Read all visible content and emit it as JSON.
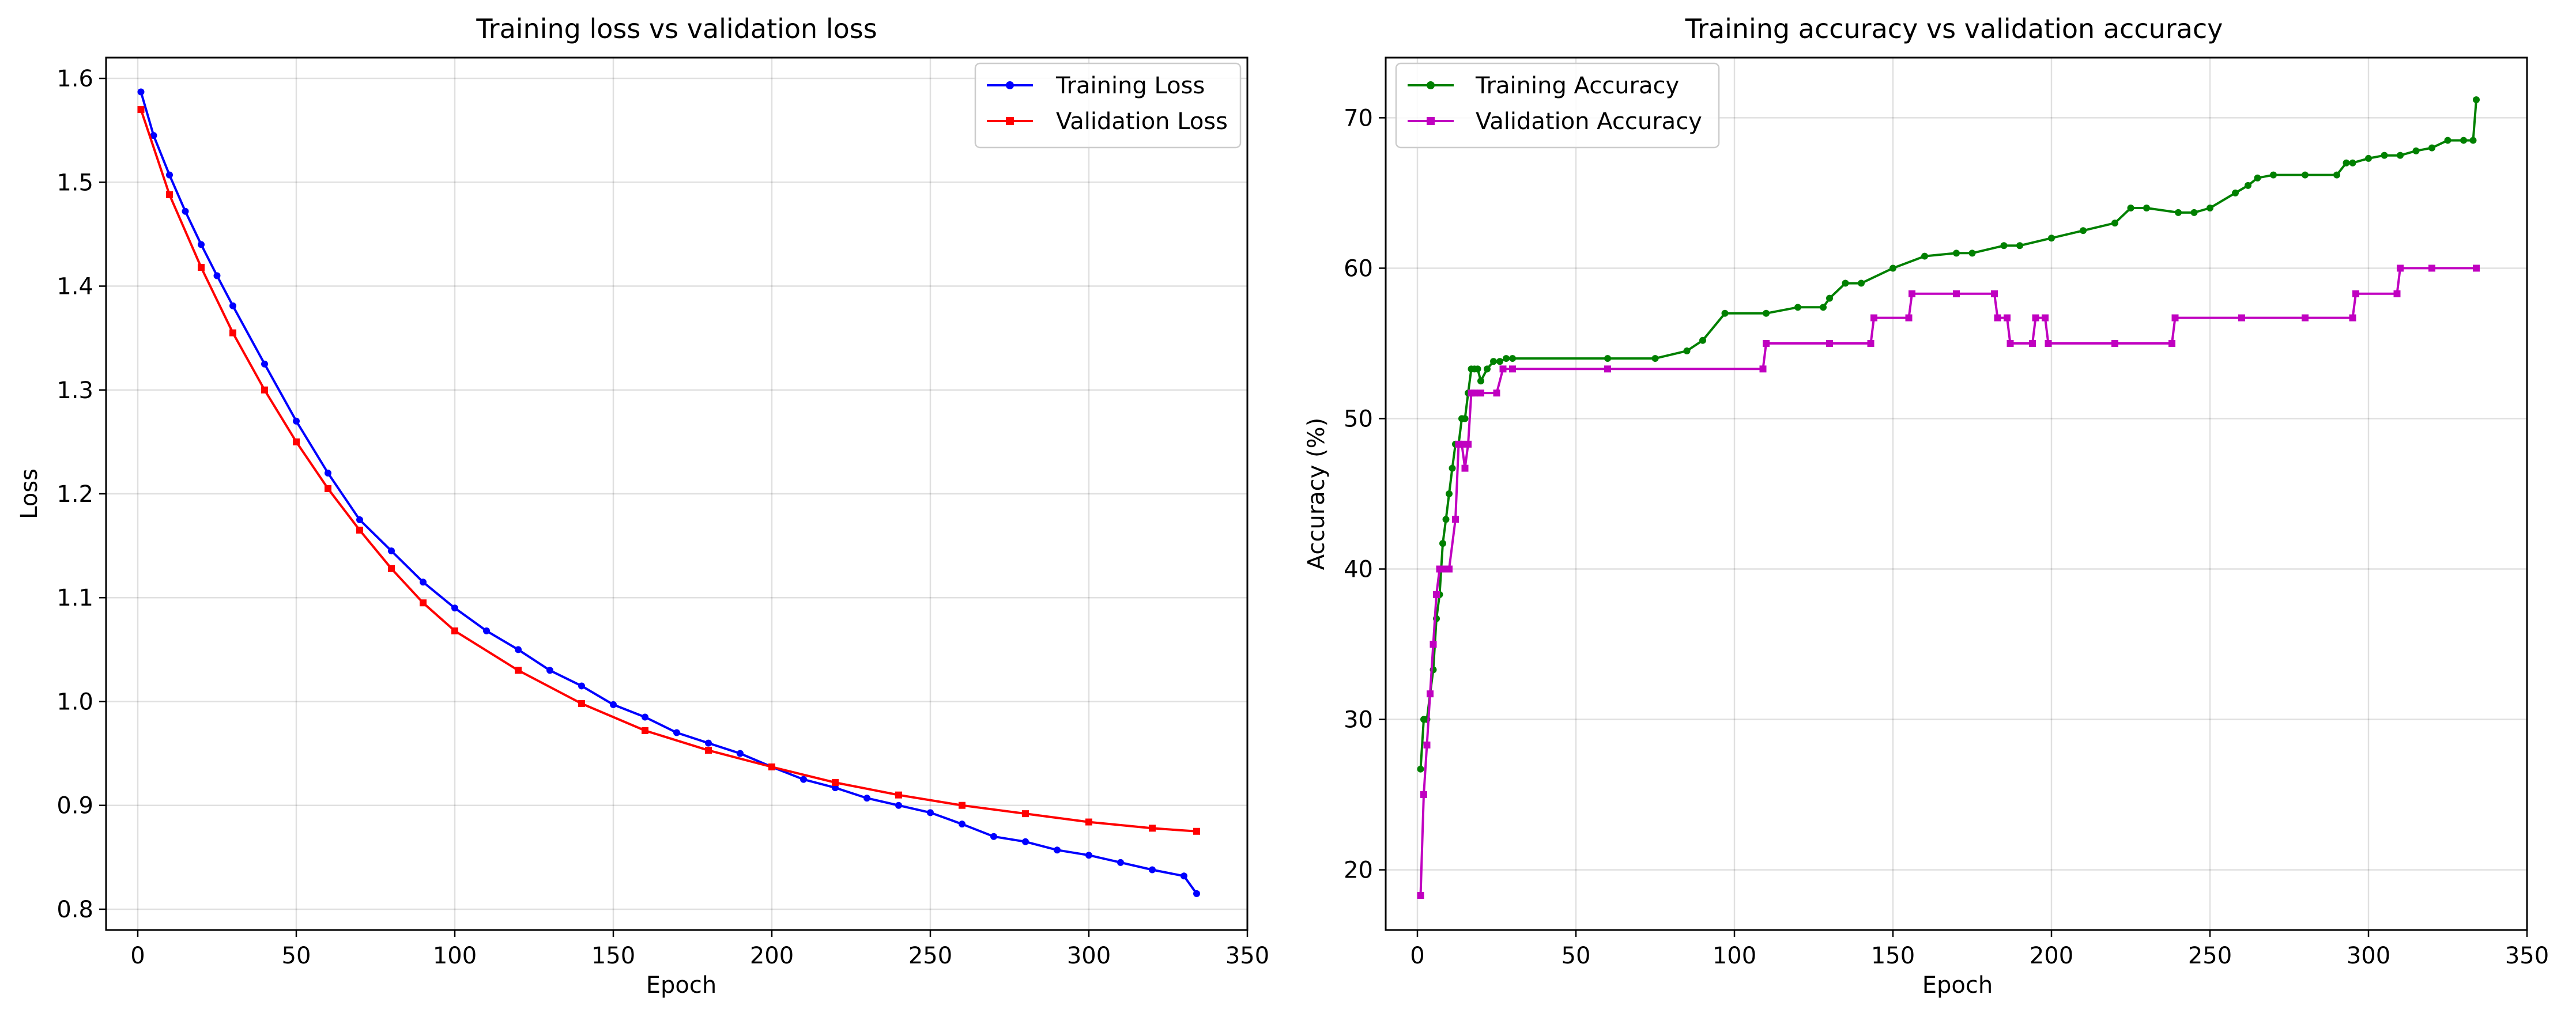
{
  "chart_data": [
    {
      "type": "line",
      "title": "Training loss vs validation loss",
      "xlabel": "Epoch",
      "ylabel": "Loss",
      "xlim": [
        -10,
        350
      ],
      "ylim": [
        0.78,
        1.62
      ],
      "xticks": [
        0,
        50,
        100,
        150,
        200,
        250,
        300,
        350
      ],
      "yticks": [
        0.8,
        0.9,
        1.0,
        1.1,
        1.2,
        1.3,
        1.4,
        1.5,
        1.6
      ],
      "ytick_labels": [
        "0.8",
        "0.9",
        "1.0",
        "1.1",
        "1.2",
        "1.3",
        "1.4",
        "1.5",
        "1.6"
      ],
      "grid": true,
      "legend_position": "top-right",
      "series": [
        {
          "name": "Training Loss",
          "color": "#0000ff",
          "marker": "circle",
          "x": [
            1,
            5,
            10,
            15,
            20,
            25,
            30,
            40,
            50,
            60,
            70,
            80,
            90,
            100,
            110,
            120,
            130,
            140,
            150,
            160,
            170,
            180,
            190,
            200,
            210,
            220,
            230,
            240,
            250,
            260,
            270,
            280,
            290,
            300,
            310,
            320,
            330,
            334
          ],
          "y": [
            1.587,
            1.545,
            1.507,
            1.472,
            1.44,
            1.41,
            1.381,
            1.325,
            1.27,
            1.22,
            1.175,
            1.145,
            1.115,
            1.09,
            1.068,
            1.05,
            1.03,
            1.015,
            0.997,
            0.985,
            0.97,
            0.96,
            0.95,
            0.937,
            0.925,
            0.917,
            0.907,
            0.9,
            0.893,
            0.882,
            0.87,
            0.865,
            0.857,
            0.852,
            0.845,
            0.838,
            0.832,
            0.815
          ]
        },
        {
          "name": "Validation Loss",
          "color": "#ff0000",
          "marker": "square",
          "x": [
            1,
            10,
            20,
            30,
            40,
            50,
            60,
            70,
            80,
            90,
            100,
            120,
            140,
            160,
            180,
            200,
            220,
            240,
            260,
            280,
            300,
            320,
            334
          ],
          "y": [
            1.57,
            1.488,
            1.418,
            1.355,
            1.3,
            1.25,
            1.205,
            1.165,
            1.128,
            1.095,
            1.068,
            1.03,
            0.998,
            0.972,
            0.953,
            0.937,
            0.922,
            0.91,
            0.9,
            0.892,
            0.884,
            0.878,
            0.875
          ]
        }
      ]
    },
    {
      "type": "line",
      "title": "Training accuracy vs validation accuracy",
      "xlabel": "Epoch",
      "ylabel": "Accuracy (%)",
      "xlim": [
        -10,
        350
      ],
      "ylim": [
        16,
        74
      ],
      "xticks": [
        0,
        50,
        100,
        150,
        200,
        250,
        300,
        350
      ],
      "yticks": [
        20,
        30,
        40,
        50,
        60,
        70
      ],
      "ytick_labels": [
        "20",
        "30",
        "40",
        "50",
        "60",
        "70"
      ],
      "grid": true,
      "legend_position": "top-left",
      "series": [
        {
          "name": "Training Accuracy",
          "color": "#008000",
          "marker": "circle",
          "x": [
            1,
            2,
            3,
            4,
            5,
            6,
            7,
            8,
            9,
            10,
            11,
            12,
            13,
            14,
            15,
            16,
            17,
            18,
            19,
            20,
            22,
            24,
            26,
            28,
            30,
            60,
            75,
            85,
            90,
            97,
            110,
            120,
            128,
            130,
            135,
            140,
            150,
            160,
            170,
            175,
            185,
            190,
            200,
            210,
            220,
            225,
            230,
            240,
            245,
            250,
            258,
            262,
            265,
            270,
            280,
            290,
            293,
            295,
            300,
            305,
            310,
            315,
            320,
            325,
            330,
            333,
            334
          ],
          "y": [
            26.7,
            30.0,
            30.0,
            31.7,
            33.3,
            36.7,
            38.3,
            41.7,
            43.3,
            45.0,
            46.7,
            48.3,
            48.3,
            50.0,
            50.0,
            51.7,
            53.3,
            53.3,
            53.3,
            52.5,
            53.3,
            53.8,
            53.8,
            54.0,
            54.0,
            54.0,
            54.0,
            54.5,
            55.2,
            57.0,
            57.0,
            57.4,
            57.4,
            58.0,
            59.0,
            59.0,
            60.0,
            60.8,
            61.0,
            61.0,
            61.5,
            61.5,
            62.0,
            62.5,
            63.0,
            64.0,
            64.0,
            63.7,
            63.7,
            64.0,
            65.0,
            65.5,
            66.0,
            66.2,
            66.2,
            66.2,
            67.0,
            67.0,
            67.3,
            67.5,
            67.5,
            67.8,
            68.0,
            68.5,
            68.5,
            68.5,
            71.2
          ]
        },
        {
          "name": "Validation Accuracy",
          "color": "#c000c0",
          "marker": "square",
          "x": [
            1,
            2,
            3,
            4,
            5,
            6,
            7,
            8,
            10,
            12,
            13,
            14,
            15,
            16,
            17,
            18,
            20,
            25,
            27,
            30,
            60,
            109,
            110,
            130,
            143,
            144,
            155,
            156,
            170,
            182,
            183,
            186,
            187,
            194,
            195,
            198,
            199,
            220,
            238,
            239,
            260,
            280,
            295,
            296,
            309,
            310,
            320,
            334
          ],
          "y": [
            18.3,
            25.0,
            28.3,
            31.7,
            35.0,
            38.3,
            40.0,
            40.0,
            40.0,
            43.3,
            48.3,
            48.3,
            46.7,
            48.3,
            51.7,
            51.7,
            51.7,
            51.7,
            53.3,
            53.3,
            53.3,
            53.3,
            55.0,
            55.0,
            55.0,
            56.7,
            56.7,
            58.3,
            58.3,
            58.3,
            56.7,
            56.7,
            55.0,
            55.0,
            56.7,
            56.7,
            55.0,
            55.0,
            55.0,
            56.7,
            56.7,
            56.7,
            56.7,
            58.3,
            58.3,
            60.0,
            60.0,
            60.0
          ]
        }
      ]
    }
  ]
}
